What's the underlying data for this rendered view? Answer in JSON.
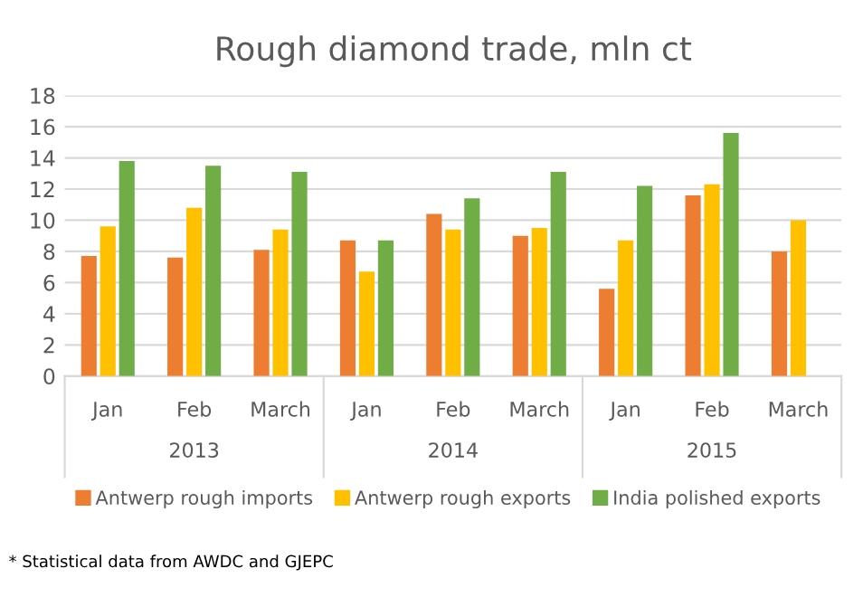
{
  "chart_data": {
    "type": "bar",
    "title": "Rough diamond trade, mln ct",
    "categories": [
      "Jan",
      "Feb",
      "March",
      "Jan",
      "Feb",
      "March",
      "Jan",
      "Feb",
      "March"
    ],
    "series": [
      {
        "name": "Antwerp rough imports",
        "color": "#ed7d31",
        "values": [
          7.7,
          7.6,
          8.1,
          8.7,
          10.4,
          9.0,
          5.6,
          11.6,
          8.0
        ]
      },
      {
        "name": "Antwerp rough exports",
        "color": "#ffc000",
        "values": [
          9.6,
          10.8,
          9.4,
          6.7,
          9.4,
          9.5,
          8.7,
          12.3,
          10.0
        ]
      },
      {
        "name": "India polished exports",
        "color": "#70ad47",
        "values": [
          13.8,
          13.5,
          13.1,
          8.7,
          11.4,
          13.1,
          12.2,
          15.6,
          null
        ]
      }
    ],
    "annotations": [
      "2013",
      "2014",
      "2015",
      "* Statistical data from AWDC and GJEPC"
    ],
    "ylim": [
      0,
      18
    ],
    "yticks": [
      0,
      2,
      4,
      6,
      8,
      10,
      12,
      14,
      16,
      18
    ],
    "grid": "y",
    "legend": "bottom"
  }
}
